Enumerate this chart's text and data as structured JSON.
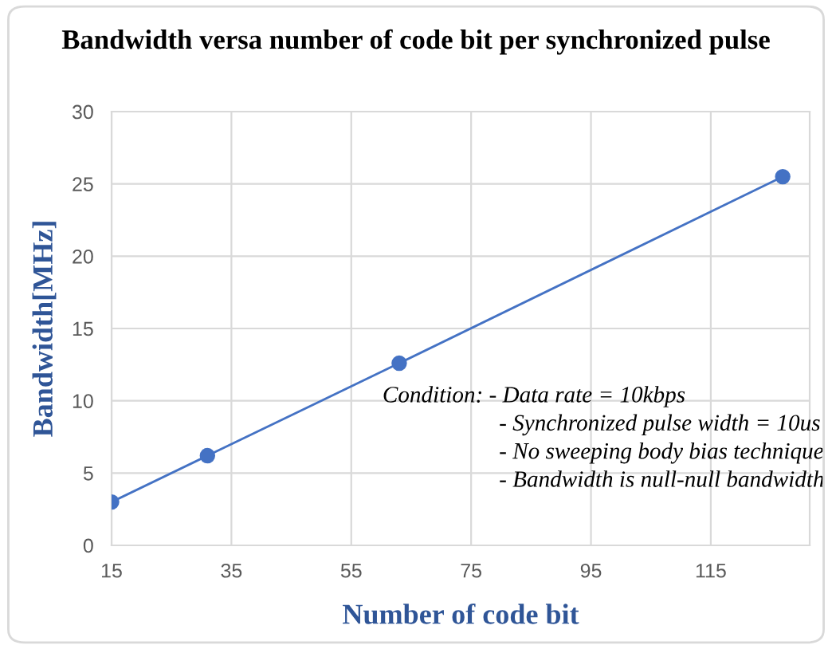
{
  "chart_data": {
    "type": "line",
    "title": "Bandwidth versa number of code bit per synchronized pulse",
    "xlabel": "Number of code bit",
    "ylabel": "Bandwidth[MHz]",
    "x": [
      15,
      31,
      63,
      127
    ],
    "series": [
      {
        "color": "#4472c4",
        "values": [
          3.0,
          6.2,
          12.6,
          25.5
        ]
      }
    ],
    "xlim": [
      15,
      131.5
    ],
    "xticks": [
      15,
      35,
      55,
      75,
      95,
      115
    ],
    "ylim": [
      0,
      30
    ],
    "yticks": [
      0,
      5,
      10,
      15,
      20,
      25,
      30
    ],
    "grid": true,
    "marker": "circle",
    "line_style": "solid",
    "annotations": [
      "Condition: - Data rate = 10kbps",
      "- Synchronized pulse width = 10us",
      "- No sweeping body bias technique",
      "- Bandwidth is null-null bandwidth"
    ]
  }
}
